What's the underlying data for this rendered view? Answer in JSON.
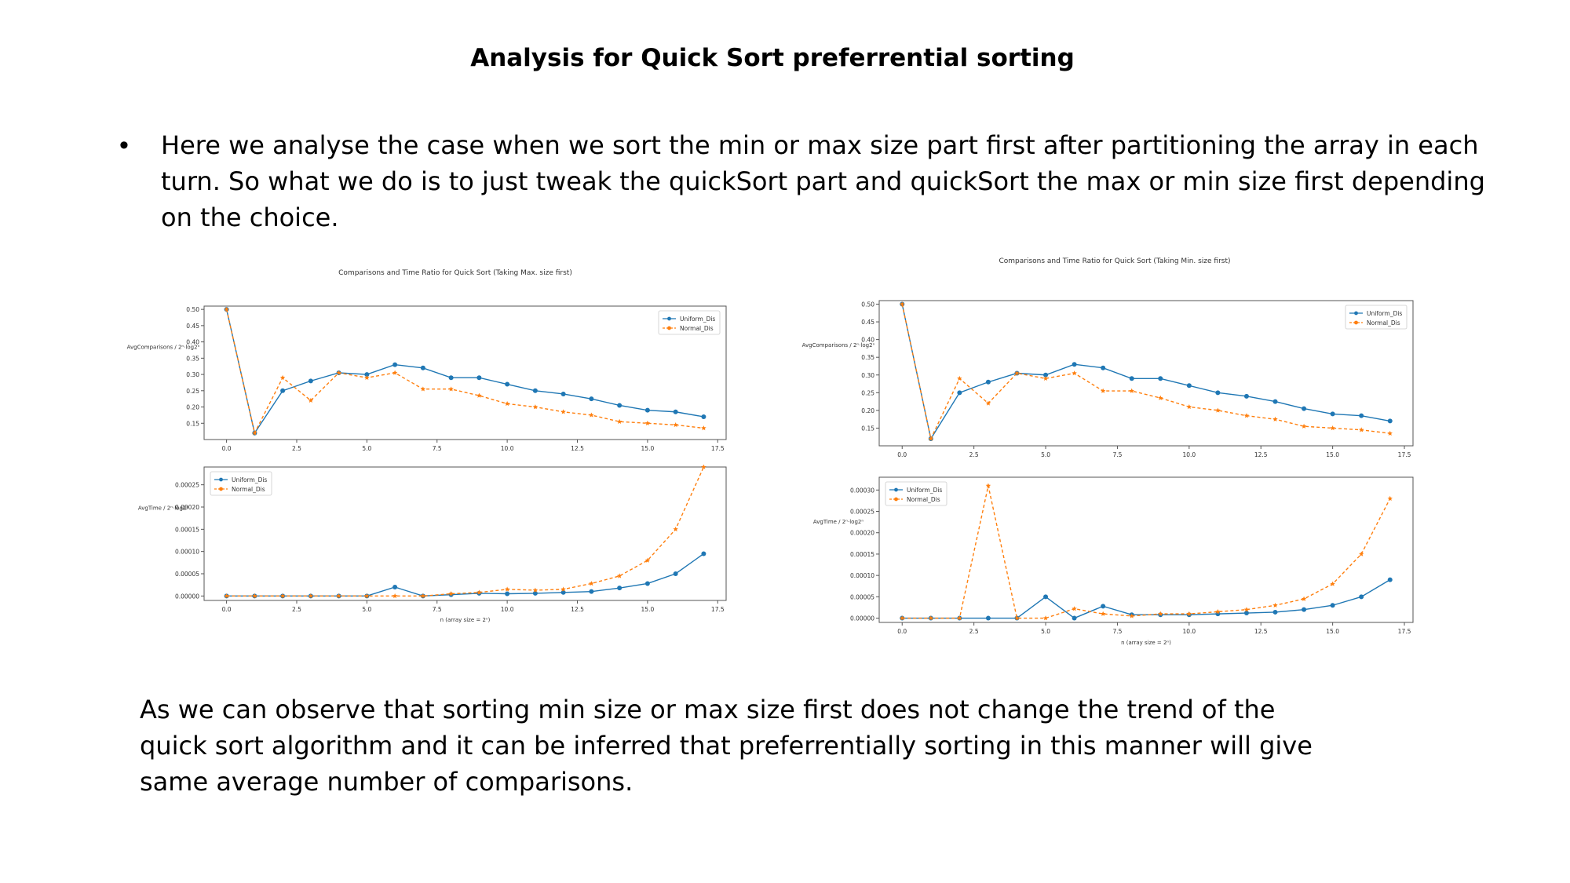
{
  "slide": {
    "title": "Analysis for Quick Sort preferrential sorting",
    "bullet": "Here we analyse the case when we sort the min or max size part first after partitioning the array in each turn.  So what we do is to just tweak the quickSort part and quickSort the max or min size first depending on the choice.",
    "conclusion": "As we can observe that sorting min size or max size first does not change the trend of the quick sort algorithm and it can be inferred that preferrentially sorting in this manner will give same average number of comparisons."
  },
  "chart_data": [
    {
      "type": "line",
      "title": "Comparisons and Time Ratio for Quick Sort (Taking Max. size first)",
      "xlabel": "n (array size = 2ⁿ)",
      "x": [
        0,
        1,
        2,
        3,
        4,
        5,
        6,
        7,
        8,
        9,
        10,
        11,
        12,
        13,
        14,
        15,
        16,
        17
      ],
      "x_ticks": [
        "0.0",
        "2.5",
        "5.0",
        "7.5",
        "10.0",
        "12.5",
        "15.0",
        "17.5"
      ],
      "colors": {
        "uniform": "#1f77b4",
        "normal": "#ff7f0e"
      },
      "panels": [
        {
          "ylabel": "AvgComparisons / 2ⁿ·log2ⁿ",
          "ylim": [
            0.1,
            0.51
          ],
          "y_ticks": [
            "0.15",
            "0.20",
            "0.25",
            "0.30",
            "0.35",
            "0.40",
            "0.45",
            "0.50"
          ],
          "legend_position": "top-right",
          "series": [
            {
              "name": "Uniform_Dis",
              "values": [
                0.5,
                0.12,
                0.25,
                0.28,
                0.305,
                0.3,
                0.33,
                0.32,
                0.29,
                0.29,
                0.27,
                0.25,
                0.24,
                0.225,
                0.205,
                0.19,
                0.185,
                0.17
              ]
            },
            {
              "name": "Normal_Dis",
              "values": [
                0.5,
                0.12,
                0.29,
                0.22,
                0.305,
                0.29,
                0.305,
                0.255,
                0.255,
                0.235,
                0.21,
                0.2,
                0.185,
                0.175,
                0.155,
                0.15,
                0.145,
                0.135
              ]
            }
          ]
        },
        {
          "ylabel": "AvgTime / 2ⁿ·log2ⁿ",
          "ylim": [
            -1e-05,
            0.00029
          ],
          "y_ticks": [
            "0.00000",
            "0.00005",
            "0.00010",
            "0.00015",
            "0.00020",
            "0.00025"
          ],
          "legend_position": "top-left",
          "series": [
            {
              "name": "Uniform_Dis",
              "values": [
                0,
                0,
                0,
                0,
                0,
                0,
                2e-05,
                0,
                3e-06,
                6e-06,
                5e-06,
                6e-06,
                8e-06,
                1e-05,
                1.8e-05,
                2.8e-05,
                5e-05,
                9.5e-05
              ]
            },
            {
              "name": "Normal_Dis",
              "values": [
                0,
                0,
                0,
                0,
                0,
                0,
                0,
                0,
                5e-06,
                8e-06,
                1.5e-05,
                1.3e-05,
                1.5e-05,
                2.8e-05,
                4.5e-05,
                8e-05,
                0.00015,
                0.00029
              ]
            }
          ]
        }
      ]
    },
    {
      "type": "line",
      "title": "Comparisons and Time Ratio for Quick Sort (Taking Min. size first)",
      "xlabel": "n (array size = 2ⁿ)",
      "x": [
        0,
        1,
        2,
        3,
        4,
        5,
        6,
        7,
        8,
        9,
        10,
        11,
        12,
        13,
        14,
        15,
        16,
        17
      ],
      "x_ticks": [
        "0.0",
        "2.5",
        "5.0",
        "7.5",
        "10.0",
        "12.5",
        "15.0",
        "17.5"
      ],
      "colors": {
        "uniform": "#1f77b4",
        "normal": "#ff7f0e"
      },
      "panels": [
        {
          "ylabel": "AvgComparisons / 2ⁿ·log2ⁿ",
          "ylim": [
            0.1,
            0.51
          ],
          "y_ticks": [
            "0.15",
            "0.20",
            "0.25",
            "0.30",
            "0.35",
            "0.40",
            "0.45",
            "0.50"
          ],
          "legend_position": "top-right",
          "series": [
            {
              "name": "Uniform_Dis",
              "values": [
                0.5,
                0.12,
                0.25,
                0.28,
                0.305,
                0.3,
                0.33,
                0.32,
                0.29,
                0.29,
                0.27,
                0.25,
                0.24,
                0.225,
                0.205,
                0.19,
                0.185,
                0.17
              ]
            },
            {
              "name": "Normal_Dis",
              "values": [
                0.5,
                0.12,
                0.29,
                0.22,
                0.305,
                0.29,
                0.305,
                0.255,
                0.255,
                0.235,
                0.21,
                0.2,
                0.185,
                0.175,
                0.155,
                0.15,
                0.145,
                0.135
              ]
            }
          ]
        },
        {
          "ylabel": "AvgTime / 2ⁿ·log2ⁿ",
          "ylim": [
            -1e-05,
            0.00033
          ],
          "y_ticks": [
            "0.00000",
            "0.00005",
            "0.00010",
            "0.00015",
            "0.00020",
            "0.00025",
            "0.00030"
          ],
          "legend_position": "top-left",
          "series": [
            {
              "name": "Uniform_Dis",
              "values": [
                0,
                0,
                0,
                0,
                0,
                5e-05,
                0,
                2.8e-05,
                8e-06,
                8e-06,
                8e-06,
                1e-05,
                1.2e-05,
                1.4e-05,
                2e-05,
                3e-05,
                5e-05,
                9e-05
              ]
            },
            {
              "name": "Normal_Dis",
              "values": [
                0,
                0,
                0,
                0.00031,
                0,
                0,
                2.2e-05,
                1e-05,
                5e-06,
                1e-05,
                1e-05,
                1.5e-05,
                2e-05,
                3e-05,
                4.5e-05,
                8e-05,
                0.00015,
                0.00028
              ]
            }
          ]
        }
      ]
    }
  ]
}
